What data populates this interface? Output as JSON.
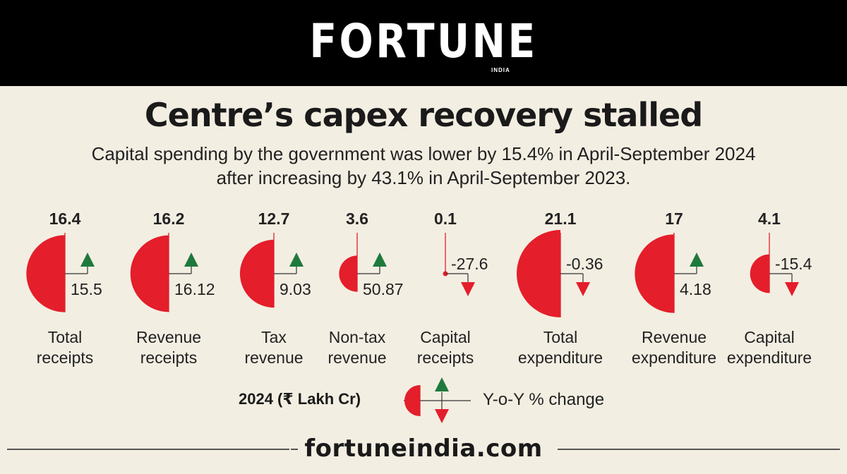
{
  "brand": {
    "name": "FORTUNE",
    "sub": "INDIA"
  },
  "header": {
    "title": "Centre’s capex recovery stalled",
    "subtitle_line1": "Capital spending by the government was lower by 15.4% in April-September 2024",
    "subtitle_line2": "after increasing by 43.1% in April-September 2023."
  },
  "legend": {
    "value_label": "2024 (₹ Lakh Cr)",
    "change_label": "Y-o-Y % change"
  },
  "footer": {
    "url": "fortuneindia.com"
  },
  "colors": {
    "accent": "#e41e2b",
    "up": "#1e7a3c",
    "down": "#e41e2b",
    "background": "#f3eee2"
  },
  "chart_data": {
    "type": "half-circle bubble",
    "categories": [
      [
        "Total",
        "receipts"
      ],
      [
        "Revenue",
        "receipts"
      ],
      [
        "Tax",
        "revenue"
      ],
      [
        "Non-tax",
        "revenue"
      ],
      [
        "Capital",
        "receipts"
      ],
      [
        "Total",
        "expenditure"
      ],
      [
        "Revenue",
        "expenditure"
      ],
      [
        "Capital",
        "expenditure"
      ]
    ],
    "series": [
      {
        "name": "2024 (₹ Lakh Cr)",
        "values": [
          16.4,
          16.2,
          12.7,
          3.6,
          0.1,
          21.1,
          17,
          4.1
        ],
        "labels": [
          "16.4",
          "16.2",
          "12.7",
          "3.6",
          "0.1",
          "21.1",
          "17",
          "4.1"
        ]
      },
      {
        "name": "Y-o-Y % change",
        "values": [
          15.5,
          16.12,
          9.03,
          50.87,
          -27.6,
          -0.36,
          4.18,
          -15.4
        ],
        "labels": [
          "15.5",
          "16.12",
          "9.03",
          "50.87",
          "-27.6",
          "-0.36",
          "4.18",
          "-15.4"
        ]
      }
    ]
  }
}
